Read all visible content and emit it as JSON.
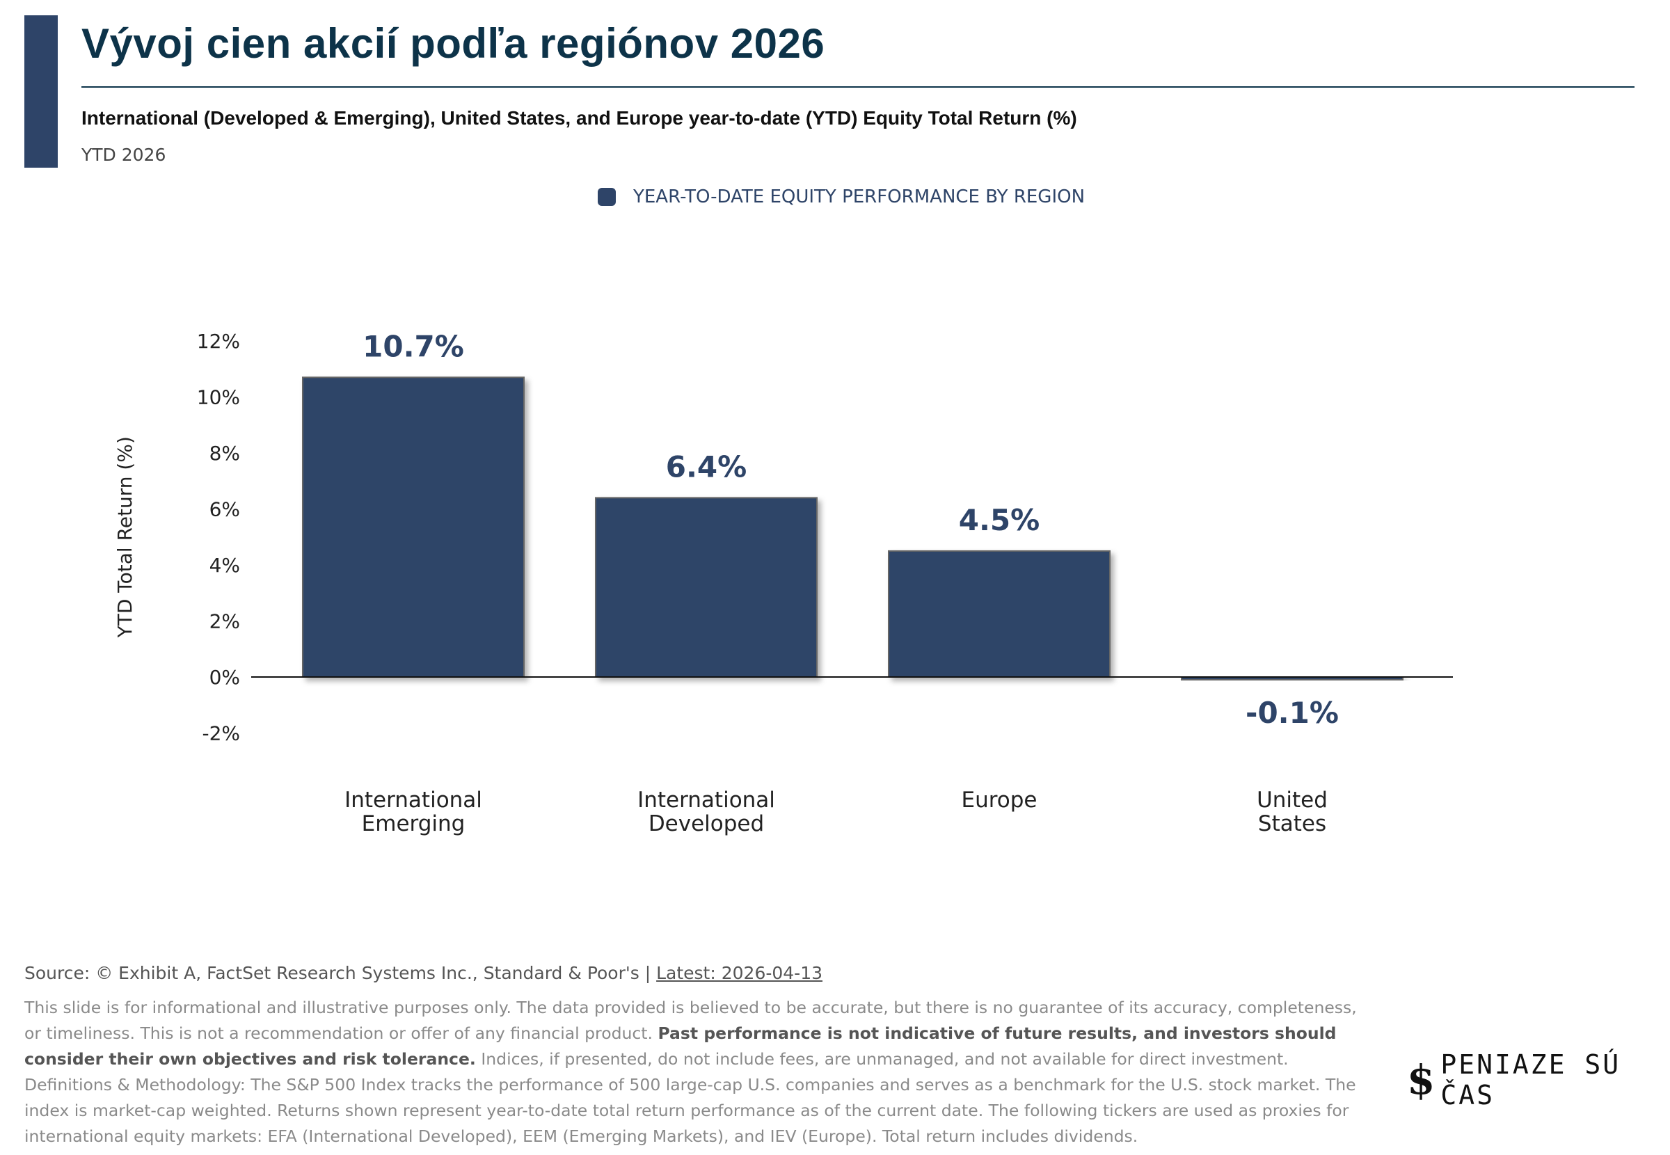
{
  "header": {
    "title": "Vývoj cien akcií podľa regiónov 2026",
    "subtitle": "International (Developed & Emerging), United States, and Europe year-to-date (YTD) Equity Total Return (%)",
    "period": "YTD 2026"
  },
  "colors": {
    "bar": "#2e4468",
    "title": "#0d3349"
  },
  "chart_data": {
    "type": "bar",
    "title": "Vývoj cien akcií podľa regiónov 2026",
    "legend": [
      "YEAR-TO-DATE EQUITY PERFORMANCE BY REGION"
    ],
    "legend_position": "top-center",
    "categories": [
      [
        "International",
        "Emerging"
      ],
      [
        "International",
        "Developed"
      ],
      [
        "Europe"
      ],
      [
        "United",
        "States"
      ]
    ],
    "values": [
      10.7,
      6.4,
      4.5,
      -0.1
    ],
    "value_labels": [
      "10.7%",
      "6.4%",
      "4.5%",
      "-0.1%"
    ],
    "xlabel": "",
    "ylabel": "YTD Total Return (%)",
    "ylim": [
      -2,
      12
    ],
    "yticks": [
      -2,
      0,
      2,
      4,
      6,
      8,
      10,
      12
    ],
    "ytick_labels": [
      "-2%",
      "0%",
      "2%",
      "4%",
      "6%",
      "8%",
      "10%",
      "12%"
    ],
    "grid": false
  },
  "footer": {
    "source": "Source: © Exhibit A, FactSet Research Systems Inc., Standard & Poor's | ",
    "latest": "Latest: 2026-04-13",
    "disclaimer_1": "This slide is for informational and illustrative purposes only. The data provided is believed to be accurate, but there is no guarantee of its accuracy, completeness, or timeliness. This is not a recommendation or offer of any financial product. ",
    "disclaimer_bold": "Past performance is not indicative of future results, and investors should consider their own objectives and risk tolerance.",
    "disclaimer_2": " Indices, if presented, do not include fees, are unmanaged, and not available for direct investment. Definitions & Methodology: The S&P 500 Index tracks the performance of 500 large-cap U.S. companies and serves as a benchmark for the U.S. stock market. The index is market-cap weighted. Returns shown represent year-to-date total return performance as of the current date. The following tickers are used as proxies for international equity markets: EFA (International Developed), EEM (Emerging Markets), and IEV (Europe). Total return includes dividends."
  },
  "logo": {
    "mark": "$",
    "text": "PENIAZE SÚ ČAS"
  }
}
